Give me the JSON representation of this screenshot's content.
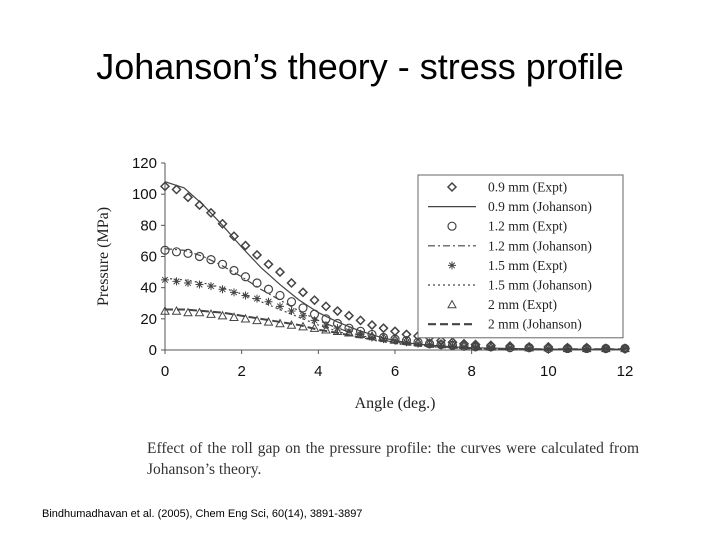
{
  "slide": {
    "title": "Johanson’s theory - stress profile",
    "caption": "Effect of the roll gap on the pressure profile: the curves were calculated from Johanson’s theory.",
    "citation": "Bindhumadhavan et al. (2005), Chem Eng Sci, 60(14), 3891-3897"
  },
  "chart_data": {
    "type": "scatter",
    "xlabel": "Angle (deg.)",
    "ylabel": "Pressure (MPa)",
    "xlim": [
      0,
      12
    ],
    "ylim": [
      0,
      120
    ],
    "xticks": [
      0,
      2,
      4,
      6,
      8,
      10,
      12
    ],
    "yticks": [
      0,
      20,
      40,
      60,
      80,
      100,
      120
    ],
    "grid": false,
    "legend_position": "top-right",
    "colors": {
      "data": "#444444",
      "axis": "#555555"
    },
    "series": [
      {
        "name": "0.9 mm (Expt)",
        "kind": "markers",
        "marker": "diamond",
        "x": [
          0,
          0.3,
          0.6,
          0.9,
          1.2,
          1.5,
          1.8,
          2.1,
          2.4,
          2.7,
          3.0,
          3.3,
          3.6,
          3.9,
          4.2,
          4.5,
          4.8,
          5.1,
          5.4,
          5.7,
          6.0,
          6.3,
          6.6,
          6.9,
          7.2,
          7.5,
          7.8,
          8.1,
          8.5,
          9.0,
          9.5,
          10.0,
          10.5,
          11.0,
          11.5,
          12.0
        ],
        "y": [
          105,
          103,
          98,
          93,
          88,
          81,
          73,
          67,
          61,
          55,
          50,
          43,
          37,
          32,
          28,
          25,
          22,
          19,
          16,
          14,
          12,
          10,
          9,
          8,
          6,
          5,
          4,
          3.5,
          3,
          2.5,
          2,
          2,
          1.5,
          1.5,
          1,
          1
        ]
      },
      {
        "name": "0.9 mm (Johanson)",
        "kind": "line",
        "dash": "solid",
        "x": [
          0,
          0.5,
          1,
          1.5,
          2,
          2.5,
          3,
          3.5,
          4,
          4.5,
          5,
          5.5,
          6,
          6.5,
          7,
          7.5,
          8,
          9,
          10,
          11,
          12
        ],
        "y": [
          108,
          104,
          93,
          80,
          66,
          53,
          42,
          32,
          24,
          18,
          13,
          9,
          6,
          4,
          3,
          2,
          1.5,
          1,
          0.5,
          0.5,
          0.5
        ]
      },
      {
        "name": "1.2 mm (Expt)",
        "kind": "markers",
        "marker": "circle",
        "x": [
          0,
          0.3,
          0.6,
          0.9,
          1.2,
          1.5,
          1.8,
          2.1,
          2.4,
          2.7,
          3.0,
          3.3,
          3.6,
          3.9,
          4.2,
          4.5,
          4.8,
          5.1,
          5.4,
          5.7,
          6.0,
          6.3,
          6.6,
          6.9,
          7.2,
          7.5,
          7.8,
          8.1,
          8.5,
          9.0,
          9.5,
          10.0,
          10.5,
          11.0,
          11.5,
          12.0
        ],
        "y": [
          64,
          63,
          62,
          60,
          58,
          55,
          51,
          47,
          43,
          39,
          35,
          31,
          27,
          23,
          20,
          17,
          14,
          12,
          10,
          8,
          7,
          6,
          5,
          4,
          3.5,
          3,
          2.5,
          2,
          2,
          1.5,
          1.5,
          1,
          1,
          1,
          1,
          1
        ]
      },
      {
        "name": "1.2 mm (Johanson)",
        "kind": "line",
        "dash": "dashdot",
        "x": [
          0,
          0.5,
          1,
          1.5,
          2,
          2.5,
          3,
          3.5,
          4,
          4.5,
          5,
          5.5,
          6,
          6.5,
          7,
          7.5,
          8,
          9,
          10,
          11,
          12
        ],
        "y": [
          65,
          64,
          60,
          54,
          47,
          39,
          32,
          25,
          19,
          14,
          10,
          7,
          5,
          3.5,
          2.5,
          1.5,
          1,
          0.5,
          0.5,
          0.5,
          0.5
        ]
      },
      {
        "name": "1.5 mm (Expt)",
        "kind": "markers",
        "marker": "asterisk",
        "x": [
          0,
          0.3,
          0.6,
          0.9,
          1.2,
          1.5,
          1.8,
          2.1,
          2.4,
          2.7,
          3.0,
          3.3,
          3.6,
          3.9,
          4.2,
          4.5,
          4.8,
          5.1,
          5.4,
          5.7,
          6.0,
          6.3,
          6.6,
          6.9,
          7.2,
          7.5,
          7.8,
          8.1,
          8.5,
          9.0,
          9.5,
          10.0,
          10.5,
          11.0,
          11.5,
          12.0
        ],
        "y": [
          45,
          44,
          43,
          42,
          41,
          39,
          37,
          35,
          33,
          31,
          28,
          25,
          22,
          19,
          16,
          14,
          12,
          10,
          8,
          7,
          6,
          5,
          4,
          3.5,
          3,
          2.5,
          2,
          2,
          1.5,
          1.5,
          1,
          1,
          1,
          1,
          1,
          1
        ]
      },
      {
        "name": "1.5 mm (Johanson)",
        "kind": "line",
        "dash": "dotted",
        "x": [
          0,
          0.5,
          1,
          1.5,
          2,
          2.5,
          3,
          3.5,
          4,
          4.5,
          5,
          5.5,
          6,
          6.5,
          7,
          7.5,
          8,
          9,
          10,
          11,
          12
        ],
        "y": [
          46,
          45,
          43,
          40,
          36,
          31,
          26,
          21,
          16,
          12,
          8.5,
          6,
          4,
          3,
          2,
          1.5,
          1,
          0.5,
          0.5,
          0.5,
          0.5
        ]
      },
      {
        "name": "2 mm (Expt)",
        "kind": "markers",
        "marker": "triangle",
        "x": [
          0,
          0.3,
          0.6,
          0.9,
          1.2,
          1.5,
          1.8,
          2.1,
          2.4,
          2.7,
          3.0,
          3.3,
          3.6,
          3.9,
          4.2,
          4.5,
          4.8,
          5.1,
          5.4,
          5.7,
          6.0,
          6.3,
          6.6,
          6.9,
          7.2,
          7.5,
          7.8,
          8.1,
          8.5,
          9.0,
          9.5,
          10.0,
          10.5,
          11.0,
          11.5,
          12.0
        ],
        "y": [
          25,
          25,
          24,
          24,
          23,
          22,
          21,
          20,
          19,
          18,
          17,
          16,
          15,
          14,
          13,
          12,
          11,
          10,
          9,
          8,
          7,
          6,
          5,
          4.5,
          4,
          3.5,
          3,
          2.5,
          2,
          2,
          1.5,
          1.5,
          1,
          1,
          1,
          1
        ]
      },
      {
        "name": "2 mm (Johanson)",
        "kind": "line",
        "dash": "dashed",
        "x": [
          0,
          0.5,
          1,
          1.5,
          2,
          2.5,
          3,
          3.5,
          4,
          4.5,
          5,
          5.5,
          6,
          6.5,
          7,
          7.5,
          8,
          9,
          10,
          11,
          12
        ],
        "y": [
          26,
          26,
          25,
          24,
          22,
          20,
          18,
          16,
          13,
          11,
          8.5,
          6.5,
          4.5,
          3,
          2,
          1.5,
          1,
          0.5,
          0.5,
          0.5,
          0.5
        ]
      }
    ]
  }
}
